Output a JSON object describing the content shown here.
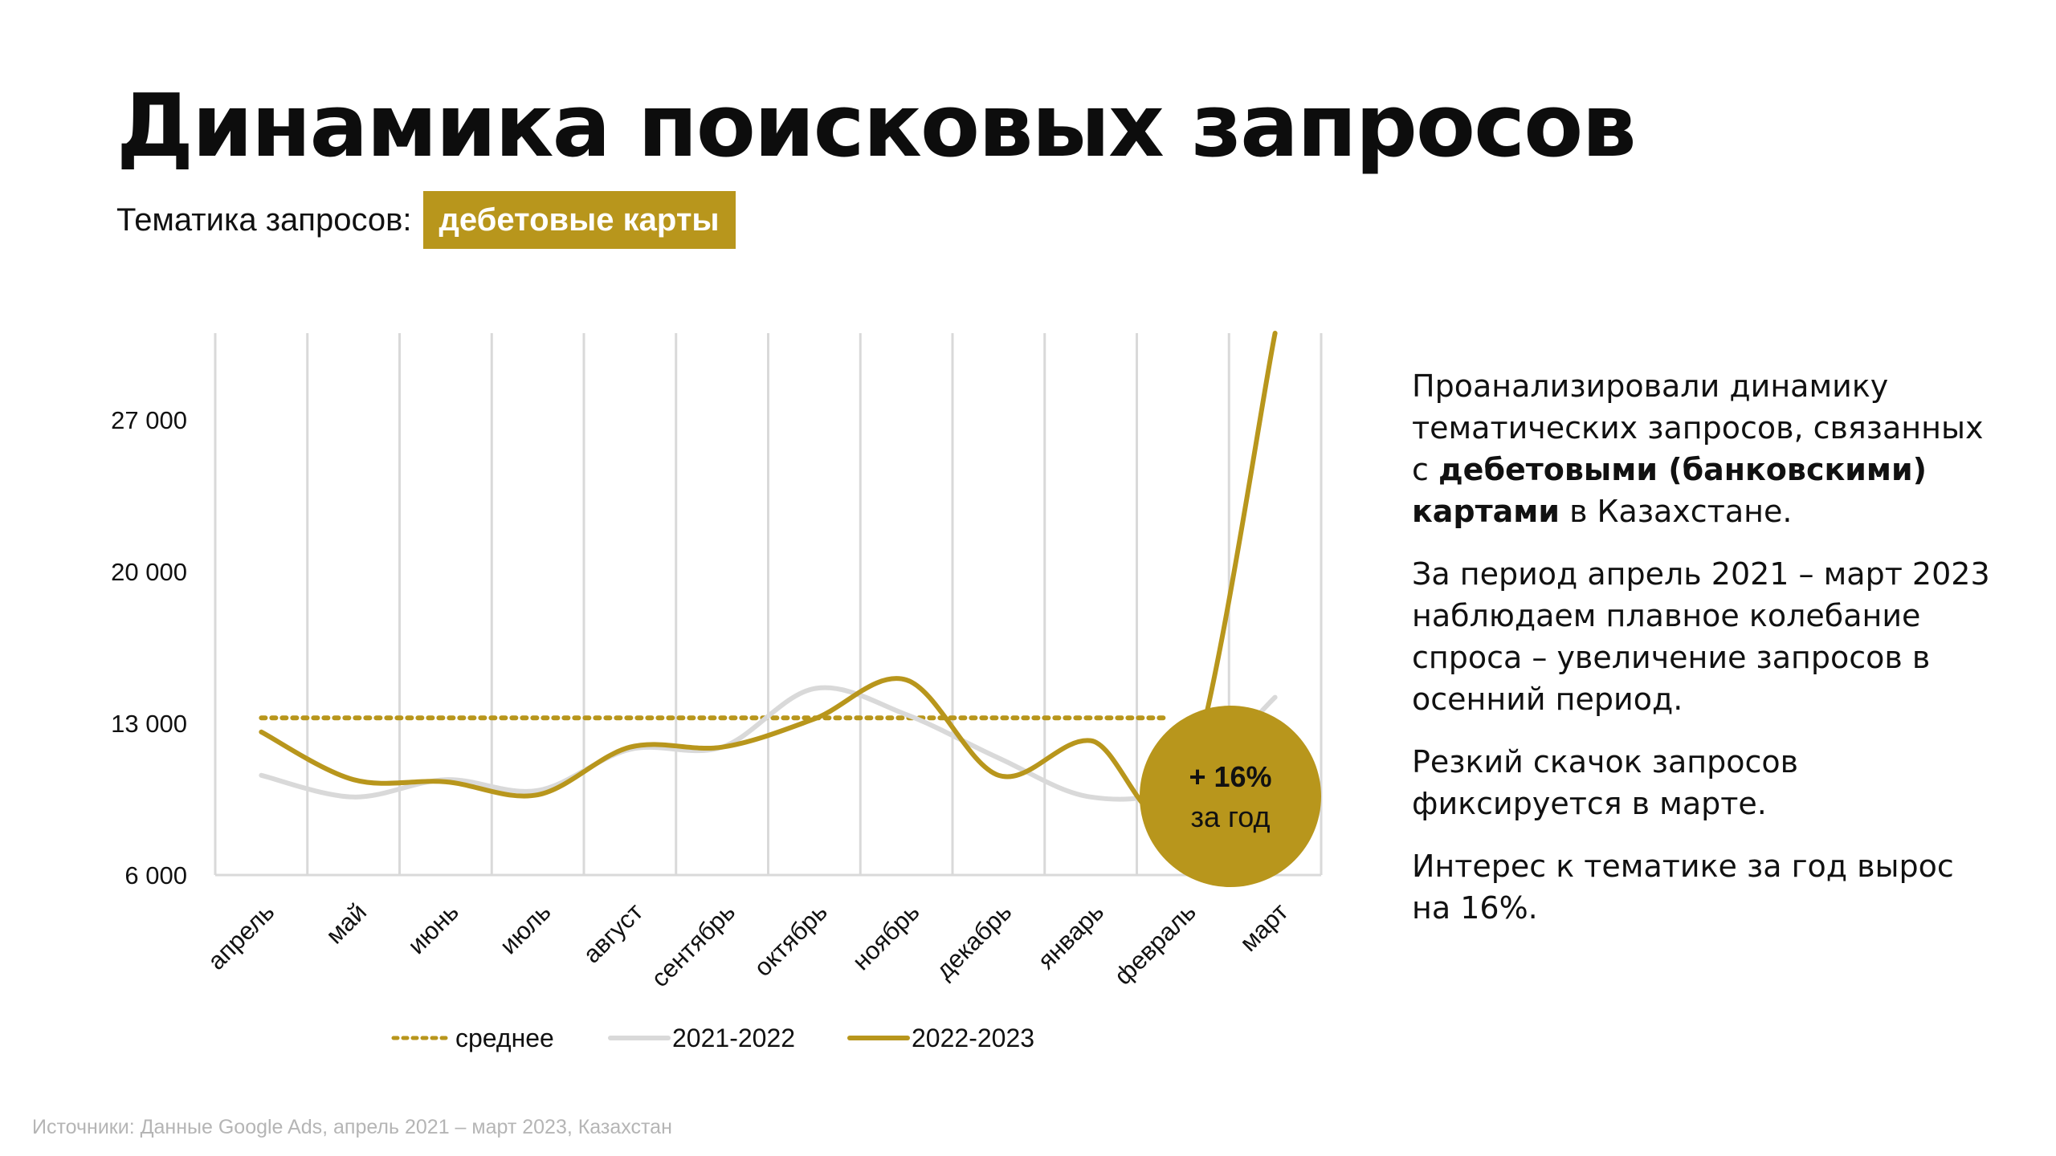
{
  "header": {
    "title": "Динамика поисковых запросов",
    "subtitle_label": "Тематика запросов:",
    "subtitle_tag": "дебетовые карты"
  },
  "colors": {
    "accent": "#b8961c",
    "series_2021": "#d9d9d9",
    "grid": "#d9d9d9"
  },
  "chart_data": {
    "type": "line",
    "categories": [
      "апрель",
      "май",
      "июнь",
      "июль",
      "август",
      "сентябрь",
      "октябрь",
      "ноябрь",
      "декабрь",
      "январь",
      "февраль",
      "март"
    ],
    "y_ticks": [
      "27 000",
      "20 000",
      "13 000",
      "6 000"
    ],
    "y_tick_values": [
      27000,
      20000,
      13000,
      6000
    ],
    "ylim": [
      6000,
      31000
    ],
    "grid": "vertical",
    "legend_position": "bottom",
    "average": {
      "name": "среднее",
      "value": 13250
    },
    "series": [
      {
        "name": "2021-2022",
        "values": [
          10600,
          9600,
          10400,
          9900,
          11800,
          11900,
          14600,
          13400,
          11400,
          9600,
          10200,
          14200
        ]
      },
      {
        "name": "2022-2023",
        "values": [
          12600,
          10400,
          10300,
          9700,
          11900,
          11900,
          13200,
          15000,
          10600,
          12200,
          9600,
          31000
        ]
      }
    ],
    "annotation": {
      "line1": "+ 16%",
      "line2": "за год"
    }
  },
  "description": {
    "p1_prefix": "Проанализировали динамику тематических запросов, связанных с ",
    "p1_bold": "дебетовыми (банковскими) картами",
    "p1_suffix": " в Казахстане.",
    "p2": "За период апрель 2021 – март 2023 наблюдаем плавное колебание спроса – увеличение запросов в осенний период.",
    "p3": "Резкий скачок запросов фиксируется в марте.",
    "p4": "Интерес к тематике за год вырос на 16%."
  },
  "footer": {
    "source": "Источники: Данные Google Ads, апрель 2021 – март 2023, Казахстан"
  }
}
